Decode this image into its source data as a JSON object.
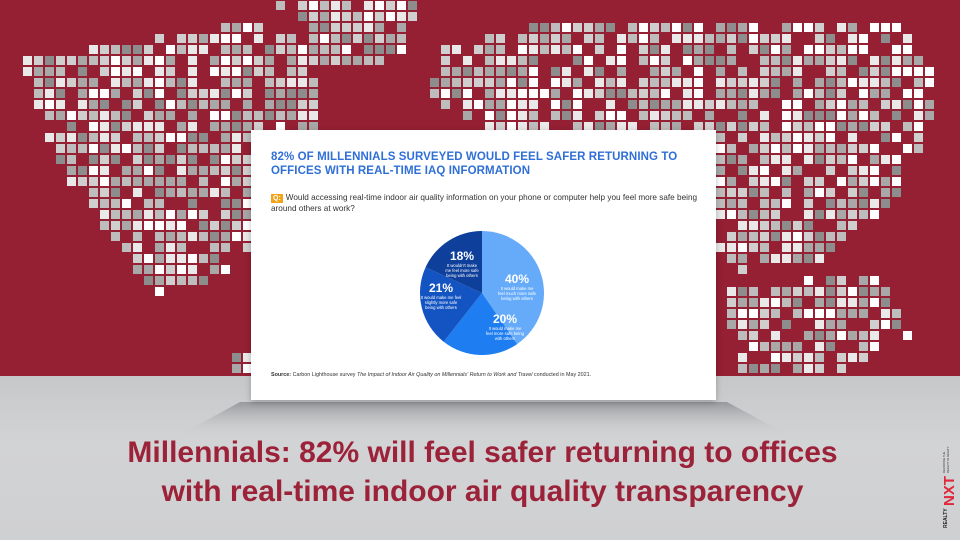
{
  "colors": {
    "maroon": "#951f33",
    "headline": "#9b2238",
    "card_title": "#2f6fd6",
    "slice_40": "#66abfa",
    "slice_20": "#1e7df0",
    "slice_21": "#1354c2",
    "slice_18": "#0e3f9a",
    "badge": "#f2a31a",
    "brand_red": "#e0263a"
  },
  "card": {
    "title": "82% OF MILLENNIALS SURVEYED WOULD FEEL SAFER RETURNING TO OFFICES WITH REAL-TIME IAQ INFORMATION",
    "question_badge": "Q:",
    "question": "Would accessing real-time indoor air quality information on your phone or computer help you feel more safe being around others at work?",
    "source_label": "Source:",
    "source_text_1": "Carbon Lighthouse survey ",
    "source_title": "The Impact of Indoor Air Quality on Millennials' Return to Work and Travel",
    "source_text_2": " conducted in May 2021."
  },
  "chart_data": {
    "type": "pie",
    "slices": [
      {
        "value": 40,
        "label": "40%",
        "text": [
          "It would make me",
          "feel much more safe",
          "being with others"
        ]
      },
      {
        "value": 20,
        "label": "20%",
        "text": [
          "It would make me",
          "feel more safe being",
          "with others"
        ]
      },
      {
        "value": 21,
        "label": "21%",
        "text": [
          "It would make me feel",
          "slightly more safe",
          "being with others"
        ]
      },
      {
        "value": 18,
        "label": "18%",
        "text": [
          "It wouldn't make",
          "me feel more safe",
          "being with others"
        ]
      }
    ]
  },
  "headline": {
    "line1": "Millennials: 82% will feel safer returning to offices",
    "line2": "with real-time indoor air quality transparency"
  },
  "brand": {
    "logo": "REALTY NXT",
    "tagline": "DECODING THE REALITY IN REALTY"
  }
}
